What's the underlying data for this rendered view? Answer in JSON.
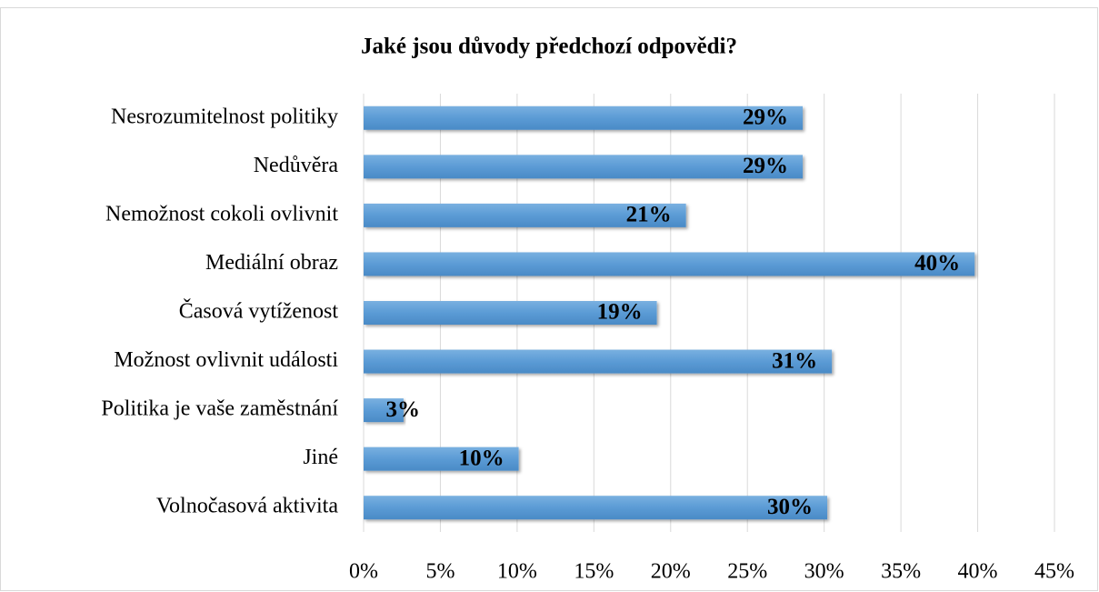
{
  "chart_data": {
    "type": "bar",
    "orientation": "horizontal",
    "title": "Jaké jsou důvody předchozí odpovědi?",
    "categories": [
      "Nesrozumitelnost politiky",
      "Nedůvěra",
      "Nemožnost cokoli ovlivnit",
      "Mediální obraz",
      "Časová vytíženost",
      "Možnost ovlivnit události",
      "Politika je vaše zaměstnání",
      "Jiné",
      "Volnočasová aktivita"
    ],
    "values": [
      28.6,
      28.6,
      21.0,
      39.8,
      19.1,
      30.5,
      2.6,
      10.1,
      30.2
    ],
    "value_labels": [
      "29%",
      "29%",
      "21%",
      "40%",
      "19%",
      "31%",
      "3%",
      "10%",
      "30%"
    ],
    "color": "#5b9bd5",
    "xlim": [
      0,
      45
    ],
    "xticks": [
      {
        "value": 0,
        "label": "0%"
      },
      {
        "value": 5,
        "label": "5%"
      },
      {
        "value": 10,
        "label": "10%"
      },
      {
        "value": 15,
        "label": "15%"
      },
      {
        "value": 20,
        "label": "20%"
      },
      {
        "value": 25,
        "label": "25%"
      },
      {
        "value": 30,
        "label": "30%"
      },
      {
        "value": 35,
        "label": "35%"
      },
      {
        "value": 40,
        "label": "40%"
      },
      {
        "value": 45,
        "label": "45%"
      }
    ],
    "grid": true
  }
}
